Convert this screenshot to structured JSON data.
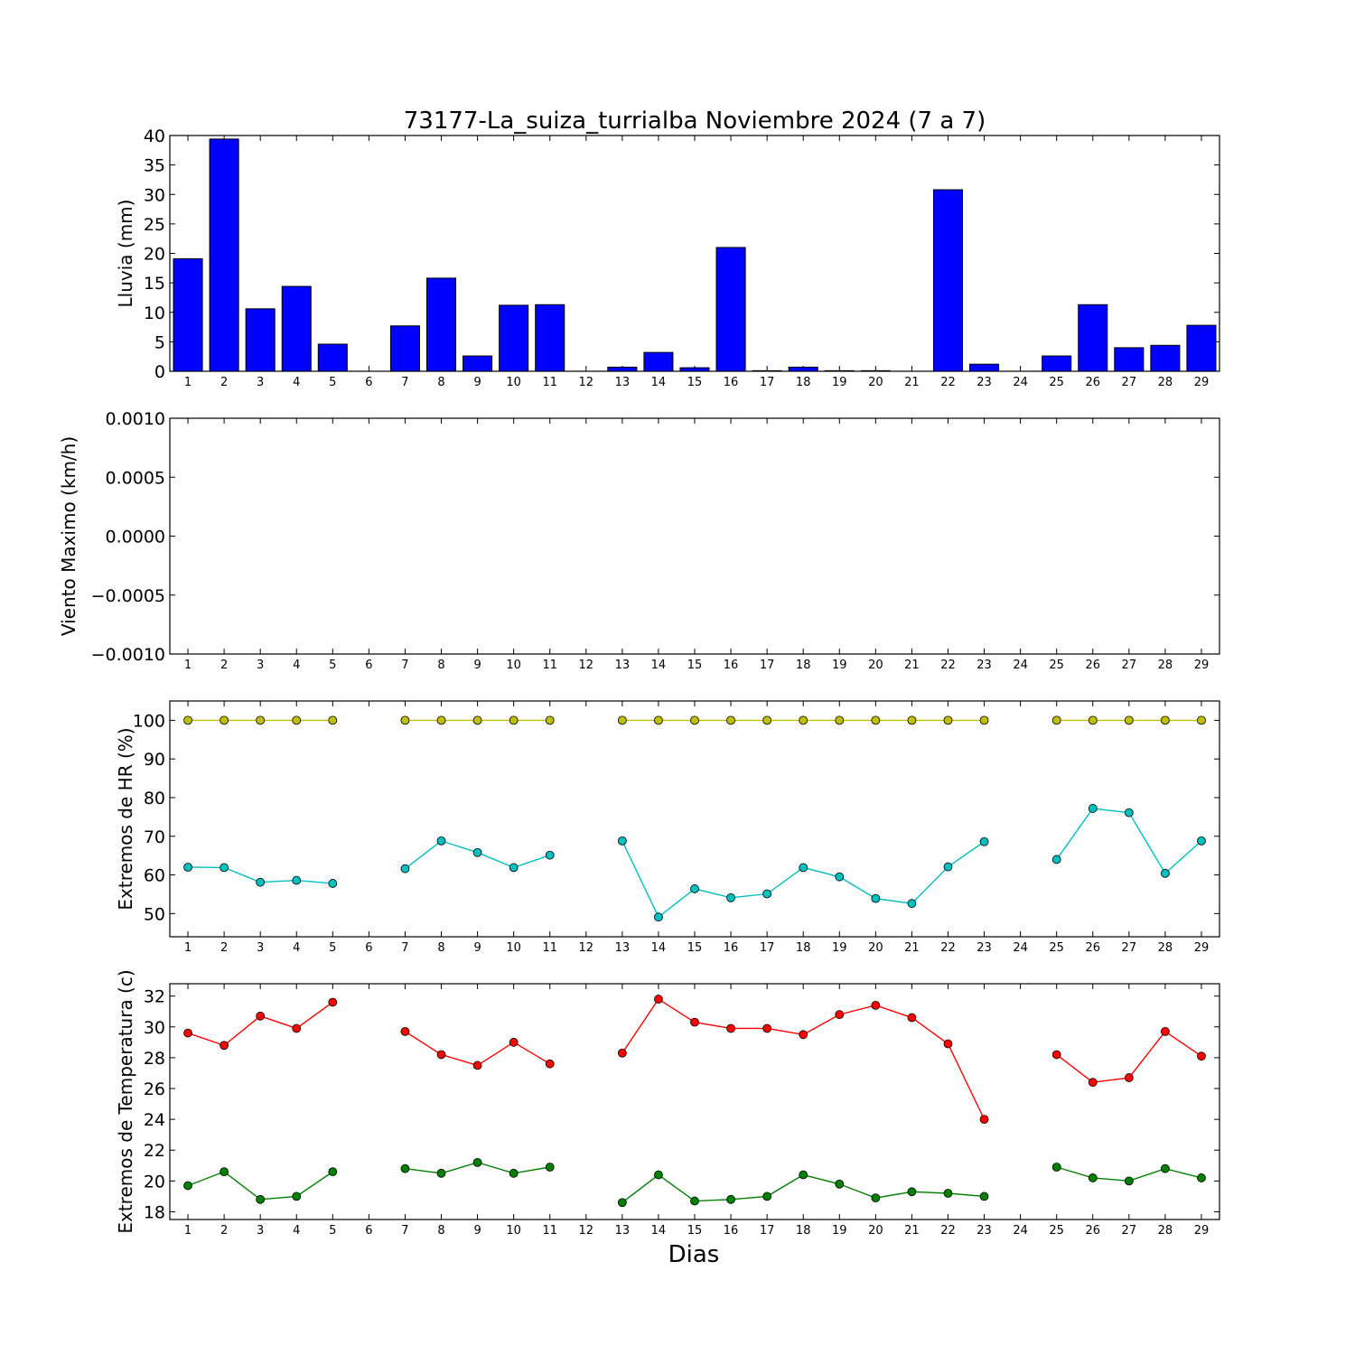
{
  "title": "73177-La_suiza_turrialba Noviembre 2024  (7 a 7)",
  "xlabel": "Dias",
  "chart_data": [
    {
      "type": "bar",
      "ylabel": "Lluvia (mm)",
      "ylim": [
        0,
        40
      ],
      "yticks": [
        "0",
        "5",
        "10",
        "15",
        "20",
        "25",
        "30",
        "35",
        "40"
      ],
      "categories": [
        "1",
        "2",
        "3",
        "4",
        "5",
        "6",
        "7",
        "8",
        "9",
        "10",
        "11",
        "12",
        "13",
        "14",
        "15",
        "16",
        "17",
        "18",
        "19",
        "20",
        "21",
        "22",
        "23",
        "24",
        "25",
        "26",
        "27",
        "28",
        "29"
      ],
      "values": [
        19.1,
        39.4,
        10.6,
        14.4,
        4.6,
        0,
        7.7,
        15.8,
        2.6,
        11.2,
        11.3,
        0,
        0.7,
        3.2,
        0.6,
        21.0,
        0.1,
        0.7,
        0.1,
        0.1,
        0,
        30.8,
        1.2,
        0,
        2.6,
        11.3,
        4.0,
        4.4,
        7.8
      ],
      "color": "#0000ff"
    },
    {
      "type": "line",
      "ylabel": "Viento Maximo (km/h)",
      "ylim": [
        -0.001,
        0.001
      ],
      "yticks": [
        "−0.0010",
        "−0.0005",
        "0.0000",
        "0.0005",
        "0.0010"
      ],
      "categories": [
        "1",
        "2",
        "3",
        "4",
        "5",
        "6",
        "7",
        "8",
        "9",
        "10",
        "11",
        "12",
        "13",
        "14",
        "15",
        "16",
        "17",
        "18",
        "19",
        "20",
        "21",
        "22",
        "23",
        "24",
        "25",
        "26",
        "27",
        "28",
        "29"
      ],
      "series": []
    },
    {
      "type": "line",
      "ylabel": "Extremos de HR (%)",
      "ylim": [
        44,
        105
      ],
      "yticks": [
        "50",
        "60",
        "70",
        "80",
        "90",
        "100"
      ],
      "categories": [
        "1",
        "2",
        "3",
        "4",
        "5",
        "6",
        "7",
        "8",
        "9",
        "10",
        "11",
        "12",
        "13",
        "14",
        "15",
        "16",
        "17",
        "18",
        "19",
        "20",
        "21",
        "22",
        "23",
        "24",
        "25",
        "26",
        "27",
        "28",
        "29"
      ],
      "series": [
        {
          "color": "#bfbf00",
          "values": [
            100,
            100,
            100,
            100,
            100,
            null,
            100,
            100,
            100,
            100,
            100,
            null,
            100,
            100,
            100,
            100,
            100,
            100,
            100,
            100,
            100,
            100,
            100,
            null,
            100,
            100,
            100,
            100,
            100
          ]
        },
        {
          "color": "#00bfbf",
          "values": [
            62,
            61.9,
            58.1,
            58.6,
            57.8,
            null,
            61.6,
            68.8,
            65.8,
            61.9,
            65.1,
            null,
            68.8,
            49.1,
            56.4,
            54.1,
            55.1,
            61.9,
            59.5,
            53.9,
            52.6,
            62.1,
            68.6,
            null,
            64,
            77.2,
            76.1,
            60.4,
            68.8
          ]
        }
      ]
    },
    {
      "type": "line",
      "ylabel": "Extremos de Temperatura (c)",
      "ylim": [
        17.5,
        32.8
      ],
      "yticks": [
        "18",
        "20",
        "22",
        "24",
        "26",
        "28",
        "30",
        "32"
      ],
      "categories": [
        "1",
        "2",
        "3",
        "4",
        "5",
        "6",
        "7",
        "8",
        "9",
        "10",
        "11",
        "12",
        "13",
        "14",
        "15",
        "16",
        "17",
        "18",
        "19",
        "20",
        "21",
        "22",
        "23",
        "24",
        "25",
        "26",
        "27",
        "28",
        "29"
      ],
      "series": [
        {
          "color": "#ff0000",
          "values": [
            29.6,
            28.8,
            30.7,
            29.9,
            31.6,
            null,
            29.7,
            28.2,
            27.5,
            29,
            27.6,
            null,
            28.3,
            31.8,
            30.3,
            29.9,
            29.9,
            29.5,
            30.8,
            31.4,
            30.6,
            28.9,
            24,
            null,
            28.2,
            26.4,
            26.7,
            29.7,
            28.1
          ]
        },
        {
          "color": "#008000",
          "values": [
            19.7,
            20.6,
            18.8,
            19,
            20.6,
            null,
            20.8,
            20.5,
            21.2,
            20.5,
            20.9,
            null,
            18.6,
            20.4,
            18.7,
            18.8,
            19,
            20.4,
            19.8,
            18.9,
            19.3,
            19.2,
            19,
            null,
            20.9,
            20.2,
            20,
            20.8,
            20.2
          ]
        }
      ]
    }
  ]
}
